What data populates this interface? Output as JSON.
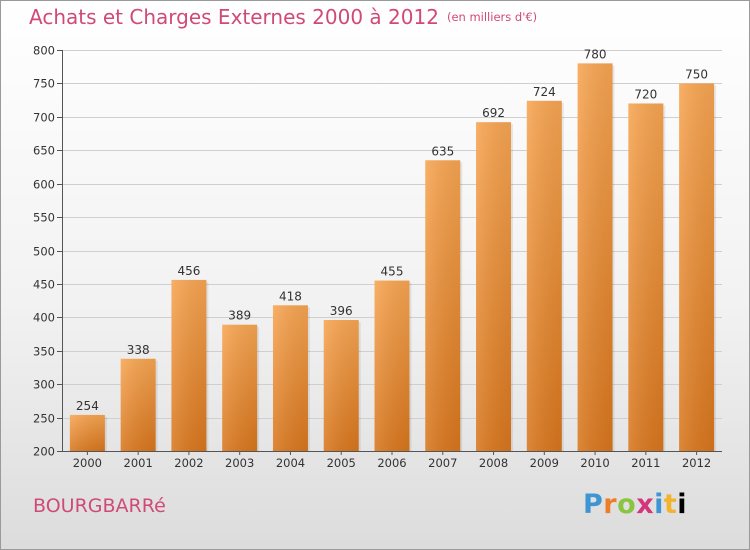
{
  "header": {
    "title": "Achats et Charges Externes 2000 à 2012",
    "subtitle": "(en milliers d'€)"
  },
  "footer": {
    "town": "BOURGBARRé",
    "logo": "Proxiti"
  },
  "colors": {
    "title": "#d04a78",
    "bar_light": "#f5a552",
    "bar_dark": "#dc7e23",
    "grid": "#c8c8c8"
  },
  "chart_data": {
    "type": "bar",
    "title": "Achats et Charges Externes 2000 à 2012",
    "subtitle": "(en milliers d'€)",
    "categories": [
      "2000",
      "2001",
      "2002",
      "2003",
      "2004",
      "2005",
      "2006",
      "2007",
      "2008",
      "2009",
      "2010",
      "2011",
      "2012"
    ],
    "values": [
      254,
      338,
      456,
      389,
      418,
      396,
      455,
      635,
      692,
      724,
      780,
      720,
      750
    ],
    "ylim": [
      200,
      800
    ],
    "yticks": [
      200,
      250,
      300,
      350,
      400,
      450,
      500,
      550,
      600,
      650,
      700,
      750,
      800
    ],
    "grid": true,
    "xlabel": "",
    "ylabel": ""
  }
}
